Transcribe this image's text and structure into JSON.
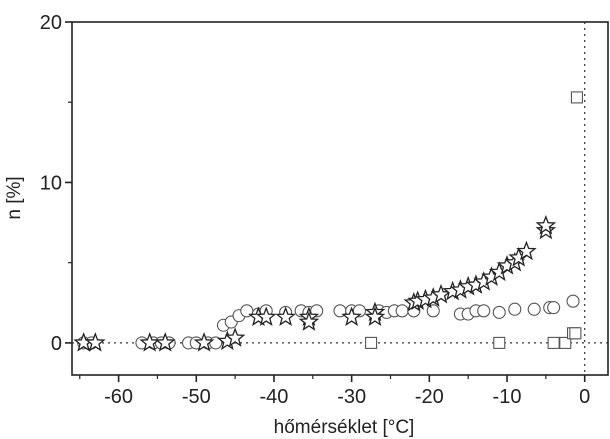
{
  "chart_data": {
    "type": "scatter",
    "xlabel": "hőmérséklet [°C]",
    "ylabel": "n [%]",
    "xlim": [
      -66,
      3
    ],
    "ylim": [
      -2,
      20
    ],
    "xticks": [
      -60,
      -50,
      -40,
      -30,
      -20,
      -10,
      0
    ],
    "yticks": [
      0,
      10,
      20
    ],
    "x_tick_labels": [
      "-60",
      "-50",
      "-40",
      "-30",
      "-20",
      "-10",
      "0"
    ],
    "y_tick_labels": [
      "0",
      "10",
      "20"
    ],
    "reference_lines": [
      {
        "orientation": "horizontal",
        "value": 0,
        "style": "dotted"
      },
      {
        "orientation": "vertical",
        "value": 0,
        "style": "dotted"
      }
    ],
    "grid": false,
    "series": [
      {
        "marker": "circle",
        "points": [
          [
            -64.5,
            0
          ],
          [
            -63.5,
            0
          ],
          [
            -57,
            0
          ],
          [
            -55.5,
            0
          ],
          [
            -54.5,
            0
          ],
          [
            -53.5,
            0
          ],
          [
            -51,
            0
          ],
          [
            -50,
            0
          ],
          [
            -48.5,
            0
          ],
          [
            -47.5,
            0
          ],
          [
            -46.5,
            1.1
          ],
          [
            -45.5,
            1.3
          ],
          [
            -44.5,
            1.7
          ],
          [
            -43.5,
            2.0
          ],
          [
            -42,
            1.8
          ],
          [
            -41,
            2.0
          ],
          [
            -38.5,
            1.9
          ],
          [
            -36.5,
            2.0
          ],
          [
            -35.5,
            1.9
          ],
          [
            -34.5,
            2.0
          ],
          [
            -31.5,
            2.0
          ],
          [
            -30,
            2.0
          ],
          [
            -29,
            2.0
          ],
          [
            -26.5,
            2.0
          ],
          [
            -25.5,
            1.9
          ],
          [
            -24.5,
            2.0
          ],
          [
            -23.5,
            2.0
          ],
          [
            -22,
            2.0
          ],
          [
            -19.5,
            2.0
          ],
          [
            -16,
            1.8
          ],
          [
            -15,
            1.8
          ],
          [
            -14,
            2.0
          ],
          [
            -13,
            2.0
          ],
          [
            -11,
            1.9
          ],
          [
            -9,
            2.1
          ],
          [
            -6.5,
            2.1
          ],
          [
            -4.5,
            2.2
          ],
          [
            -4,
            2.2
          ],
          [
            -1.5,
            2.6
          ]
        ]
      },
      {
        "marker": "star",
        "points": [
          [
            -64.5,
            0
          ],
          [
            -63,
            0
          ],
          [
            -56,
            0
          ],
          [
            -54,
            0
          ],
          [
            -49,
            0
          ],
          [
            -46,
            0.1
          ],
          [
            -45,
            0.3
          ],
          [
            -42,
            1.6
          ],
          [
            -41,
            1.6
          ],
          [
            -38.5,
            1.6
          ],
          [
            -35.5,
            1.6
          ],
          [
            -35.5,
            1.3
          ],
          [
            -30,
            1.6
          ],
          [
            -27,
            1.9
          ],
          [
            -27,
            1.6
          ],
          [
            -22,
            2.5
          ],
          [
            -21.5,
            2.6
          ],
          [
            -20.5,
            2.7
          ],
          [
            -19.5,
            2.8
          ],
          [
            -18.5,
            3.0
          ],
          [
            -17,
            3.2
          ],
          [
            -16,
            3.3
          ],
          [
            -15,
            3.5
          ],
          [
            -14,
            3.6
          ],
          [
            -13,
            3.8
          ],
          [
            -12,
            4.1
          ],
          [
            -11,
            4.4
          ],
          [
            -10,
            4.8
          ],
          [
            -9,
            5.0
          ],
          [
            -8.5,
            5.3
          ],
          [
            -7.5,
            5.7
          ],
          [
            -5,
            7.0
          ],
          [
            -5,
            7.3
          ]
        ]
      },
      {
        "marker": "square",
        "points": [
          [
            -27.5,
            0
          ],
          [
            -11,
            0
          ],
          [
            -4,
            0
          ],
          [
            -2.5,
            0
          ],
          [
            -1.5,
            0.6
          ],
          [
            -1.2,
            0.6
          ],
          [
            -1,
            15.3
          ]
        ]
      }
    ]
  }
}
